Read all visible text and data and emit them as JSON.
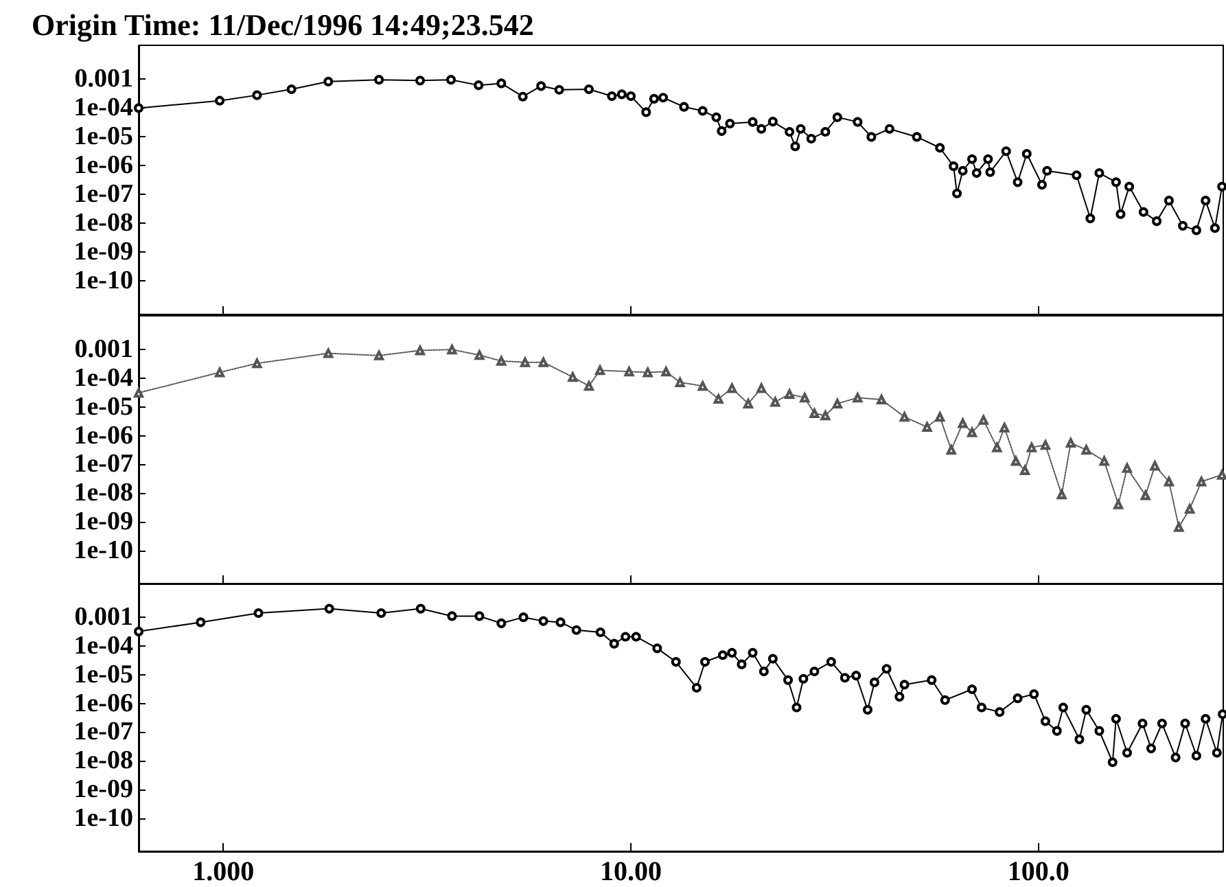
{
  "chart_data": [
    {
      "type": "line",
      "title": "Origin Time: 11/Dec/1996 14:49;23.542",
      "log": "xy",
      "grid": false,
      "marker": "circle",
      "line_style": "solid",
      "tick_labels": "y",
      "xlim": [
        0.62,
        284
      ],
      "ylim": [
        7e-12,
        0.015
      ],
      "xticks": [
        {
          "value": 1,
          "label": null
        },
        {
          "value": 10,
          "label": null
        },
        {
          "value": 100,
          "label": null
        }
      ],
      "yticks": [
        {
          "value": 0.001,
          "label": "0.001"
        },
        {
          "value": 0.0001,
          "label": "1e-04"
        },
        {
          "value": 1e-05,
          "label": "1e-05"
        },
        {
          "value": 1e-06,
          "label": "1e-06"
        },
        {
          "value": 1e-07,
          "label": "1e-07"
        },
        {
          "value": 1e-08,
          "label": "1e-08"
        },
        {
          "value": 1e-09,
          "label": "1e-09"
        },
        {
          "value": 1e-10,
          "label": "1e-10"
        }
      ],
      "series": [
        {
          "color": "#000000",
          "x": [
            0.62,
            0.98,
            1.21,
            1.47,
            1.81,
            2.41,
            3.04,
            3.62,
            4.23,
            4.81,
            5.43,
            6.02,
            6.67,
            7.89,
            8.98,
            9.5,
            10,
            10.9,
            11.4,
            12.0,
            13.5,
            15.0,
            16.2,
            16.7,
            17.5,
            19.9,
            20.9,
            22.3,
            24.5,
            25.3,
            26.1,
            27.7,
            30.0,
            32.1,
            36.0,
            38.9,
            43.1,
            50.3,
            57.3,
            61.9,
            63.1,
            65.2,
            68.7,
            70.5,
            75.2,
            76.1,
            83.3,
            88.9,
            93.6,
            102,
            105,
            124,
            134,
            141,
            155,
            159,
            167,
            181,
            195,
            209,
            226,
            244,
            257,
            271,
            282
          ],
          "values": [
            0.0001,
            0.00018,
            0.00028,
            0.00045,
            0.00083,
            0.00096,
            0.0009,
            0.00096,
            0.00062,
            0.00072,
            0.00025,
            0.00058,
            0.00043,
            0.00045,
            0.00026,
            0.0003,
            0.00026,
            7.2e-05,
            0.00021,
            0.00023,
            0.00011,
            8e-05,
            4.8e-05,
            1.6e-05,
            2.9e-05,
            3.3e-05,
            1.9e-05,
            3.4e-05,
            1.5e-05,
            4.7e-06,
            1.9e-05,
            8.7e-06,
            1.5e-05,
            4.8e-05,
            3.3e-05,
            1e-05,
            1.9e-05,
            1e-05,
            4.2e-06,
            9.6e-07,
            1.1e-07,
            6.7e-07,
            1.7e-06,
            5.6e-07,
            1.7e-06,
            6e-07,
            3.2e-06,
            2.7e-07,
            2.6e-06,
            2.2e-07,
            6.7e-07,
            4.7e-07,
            1.5e-08,
            5.6e-07,
            2.7e-07,
            2.1e-08,
            1.9e-07,
            2.5e-08,
            1.2e-08,
            6.2e-08,
            8.3e-09,
            5.8e-09,
            6.2e-08,
            6.9e-09,
            1.9e-07
          ]
        }
      ]
    },
    {
      "type": "line",
      "log": "xy",
      "grid": false,
      "marker": "triangle",
      "line_style": "dotted",
      "tick_labels": "y",
      "xlim": [
        0.62,
        284
      ],
      "ylim": [
        7e-12,
        0.015
      ],
      "xticks": [
        {
          "value": 1,
          "label": null
        },
        {
          "value": 10,
          "label": null
        },
        {
          "value": 100,
          "label": null
        }
      ],
      "yticks": [
        {
          "value": 0.001,
          "label": "0.001"
        },
        {
          "value": 0.0001,
          "label": "1e-04"
        },
        {
          "value": 1e-05,
          "label": "1e-05"
        },
        {
          "value": 1e-06,
          "label": "1e-06"
        },
        {
          "value": 1e-07,
          "label": "1e-07"
        },
        {
          "value": 1e-08,
          "label": "1e-08"
        },
        {
          "value": 1e-09,
          "label": "1e-09"
        },
        {
          "value": 1e-10,
          "label": "1e-10"
        }
      ],
      "series": [
        {
          "color": "#555555",
          "x": [
            0.62,
            0.98,
            1.21,
            1.81,
            2.41,
            3.04,
            3.64,
            4.25,
            4.81,
            5.5,
            6.1,
            7.2,
            7.89,
            8.4,
            9.9,
            11.0,
            12.2,
            13.2,
            15.0,
            16.4,
            17.7,
            19.4,
            20.9,
            22.6,
            24.5,
            26.7,
            28.2,
            30.0,
            32.1,
            36.0,
            41.2,
            46.9,
            53.3,
            57.3,
            61.1,
            65.2,
            68.7,
            73.3,
            79.1,
            82.5,
            88,
            92.6,
            96.2,
            104,
            114,
            120,
            131,
            145,
            157,
            165,
            183,
            193,
            209,
            221,
            235,
            251,
            282
          ],
          "values": [
            3.1e-05,
            0.00016,
            0.00033,
            0.00074,
            0.00062,
            0.00093,
            0.001,
            0.00064,
            0.0004,
            0.00036,
            0.00036,
            0.00011,
            5.4e-05,
            0.00019,
            0.00017,
            0.00016,
            0.00017,
            7.2e-05,
            5.4e-05,
            1.9e-05,
            4.5e-05,
            1.3e-05,
            4.5e-05,
            1.5e-05,
            2.8e-05,
            2.1e-05,
            6e-06,
            5e-06,
            1.3e-05,
            2.1e-05,
            1.8e-05,
            4.5e-06,
            2e-06,
            4.5e-06,
            3.2e-07,
            2.7e-06,
            1.3e-06,
            3.5e-06,
            3.9e-07,
            1.9e-06,
            1.3e-07,
            6.2e-08,
            3.9e-07,
            4.7e-07,
            8.9e-09,
            5.6e-07,
            3.2e-07,
            1.3e-07,
            4e-09,
            7.4e-08,
            8.3e-09,
            8.9e-08,
            2.5e-08,
            6.5e-10,
            2.8e-09,
            2.5e-08,
            4.3e-08
          ]
        }
      ]
    },
    {
      "type": "line",
      "log": "xy",
      "grid": false,
      "marker": "circle",
      "line_style": "solid",
      "xlim": [
        0.62,
        284
      ],
      "ylim": [
        7e-12,
        0.015
      ],
      "xticks": [
        {
          "value": 1,
          "label": "1.000"
        },
        {
          "value": 10,
          "label": "10.00"
        },
        {
          "value": 100,
          "label": "100.0"
        }
      ],
      "yticks": [
        {
          "value": 0.001,
          "label": "0.001"
        },
        {
          "value": 0.0001,
          "label": "1e-04"
        },
        {
          "value": 1e-05,
          "label": "1e-05"
        },
        {
          "value": 1e-06,
          "label": "1e-06"
        },
        {
          "value": 1e-07,
          "label": "1e-07"
        },
        {
          "value": 1e-08,
          "label": "1e-08"
        },
        {
          "value": 1e-09,
          "label": "1e-09"
        },
        {
          "value": 1e-10,
          "label": "1e-10"
        }
      ],
      "series": [
        {
          "color": "#000000",
          "x": [
            0.62,
            0.88,
            1.22,
            1.82,
            2.44,
            3.05,
            3.64,
            4.25,
            4.81,
            5.45,
            6.1,
            6.72,
            7.35,
            8.42,
            9.1,
            9.7,
            10.3,
            11.6,
            12.9,
            14.5,
            15.2,
            16.8,
            17.7,
            18.7,
            19.9,
            21.2,
            22.3,
            24.3,
            25.5,
            26.5,
            28.2,
            31.0,
            33.5,
            35.7,
            38.1,
            39.6,
            42.4,
            45.6,
            46.9,
            54.7,
            59,
            68.7,
            72.5,
            80.3,
            88.9,
            97.5,
            104,
            111,
            115,
            126,
            131,
            141,
            152,
            155,
            165,
            180,
            189,
            201,
            217,
            229,
            244,
            257,
            274,
            283
          ],
          "values": [
            0.00032,
            0.00067,
            0.0014,
            0.002,
            0.0014,
            0.002,
            0.0011,
            0.0011,
            0.00062,
            0.001,
            0.00074,
            0.00067,
            0.00036,
            0.0003,
            0.00012,
            0.00021,
            0.00021,
            8.3e-05,
            2.8e-05,
            3.5e-06,
            2.8e-05,
            4.8e-05,
            5.8e-05,
            2.3e-05,
            5.8e-05,
            1.3e-05,
            3.6e-05,
            6.5e-06,
            7.2e-07,
            7.2e-06,
            1.3e-05,
            2.8e-05,
            7.8e-06,
            9.3e-06,
            6e-07,
            5.4e-06,
            1.6e-05,
            1.7e-06,
            4.5e-06,
            6.5e-06,
            1.3e-06,
            3.1e-06,
            7.2e-07,
            5e-07,
            1.5e-06,
            2.1e-06,
            2.4e-07,
            1.1e-07,
            7.2e-07,
            5.6e-08,
            6e-07,
            1.1e-07,
            8.9e-09,
            2.9e-07,
            1.9e-08,
            2e-07,
            2.7e-08,
            2e-07,
            1.3e-08,
            2e-07,
            1.5e-08,
            2.9e-07,
            1.9e-08,
            4.2e-07
          ]
        }
      ]
    }
  ]
}
